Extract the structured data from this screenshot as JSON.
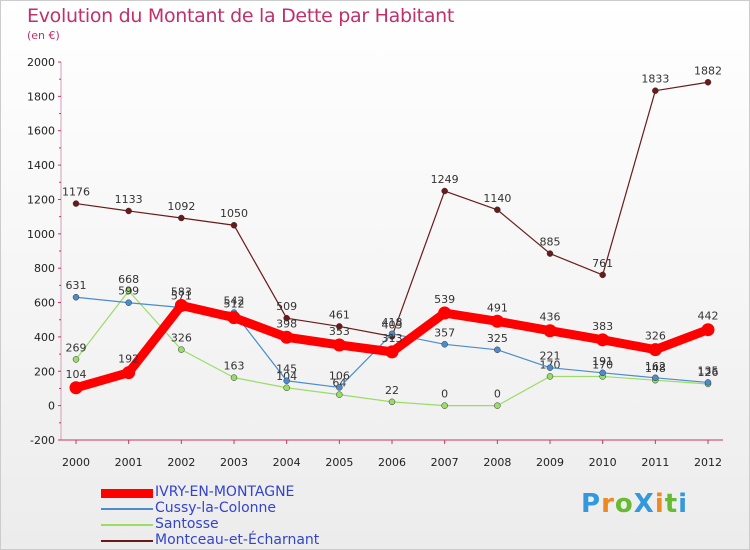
{
  "title": "Evolution du Montant de la Dette par Habitant",
  "subtitle": "(en €)",
  "logo_text": "ProXiti",
  "chart_data": {
    "type": "line",
    "title": "Evolution du Montant de la Dette par Habitant",
    "ylabel": "(en €)",
    "ylim": [
      -200,
      2000
    ],
    "yticks": [
      -200,
      0,
      200,
      400,
      600,
      800,
      1000,
      1200,
      1400,
      1600,
      1800,
      2000
    ],
    "x": [
      "2000",
      "2001",
      "2002",
      "2003",
      "2004",
      "2005",
      "2006",
      "2007",
      "2008",
      "2009",
      "2010",
      "2011",
      "2012"
    ],
    "grid": false,
    "legend_position": "bottom-left",
    "series": [
      {
        "name": "IVRY-EN-MONTAGNE",
        "color": "#ff0000",
        "values": [
          104,
          192,
          583,
          512,
          398,
          353,
          313,
          539,
          491,
          436,
          383,
          326,
          442
        ]
      },
      {
        "name": "Cussy-la-Colonne",
        "color": "#4a8ccc",
        "values": [
          631,
          599,
          571,
          542,
          145,
          106,
          418,
          357,
          325,
          221,
          191,
          162,
          135
        ]
      },
      {
        "name": "Santosse",
        "color": "#99dd66",
        "values": [
          269,
          668,
          326,
          163,
          104,
          64,
          22,
          0,
          0,
          170,
          170,
          148,
          126
        ]
      },
      {
        "name": "Montceau-et-Écharnant",
        "color": "#6b1a1a",
        "values": [
          1176,
          1133,
          1092,
          1050,
          509,
          461,
          403,
          1249,
          1140,
          885,
          761,
          1833,
          1882
        ]
      }
    ]
  }
}
